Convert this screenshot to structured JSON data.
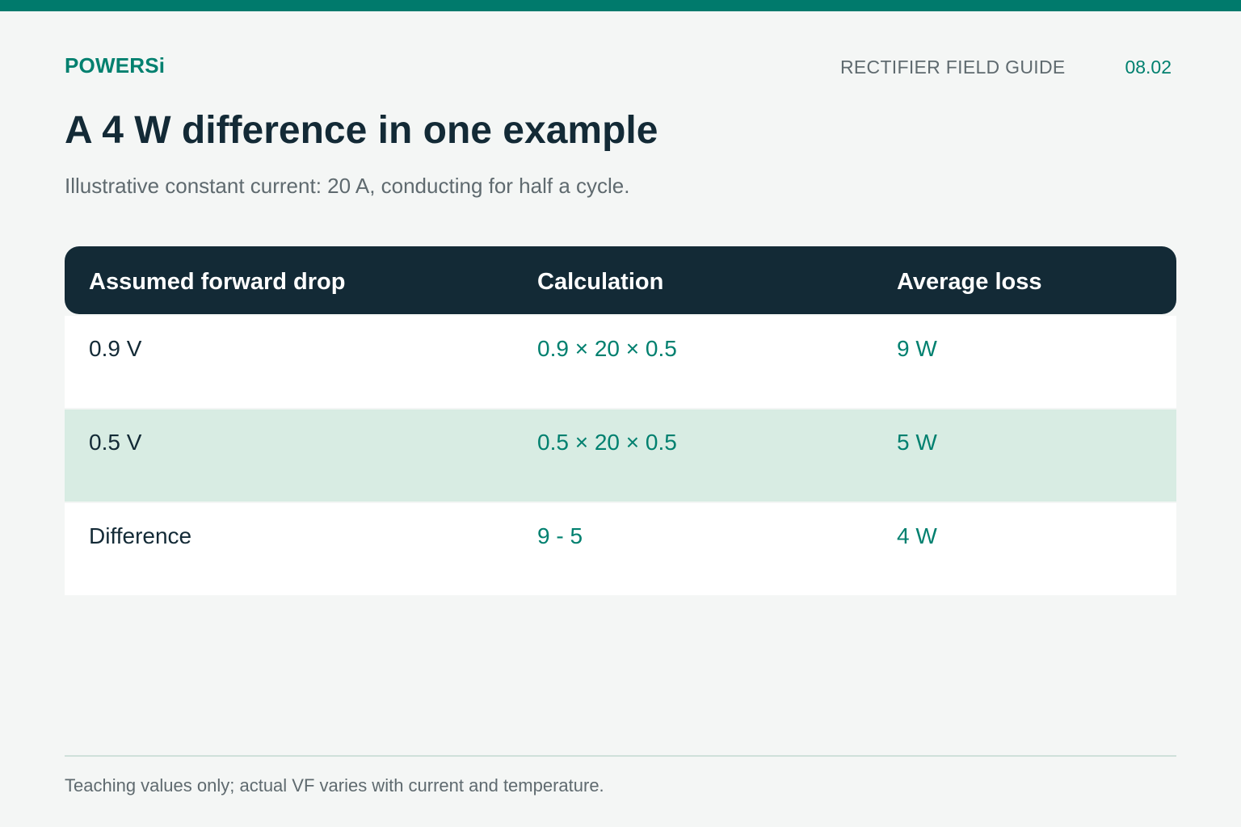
{
  "header": {
    "brand": "POWERSi",
    "guide_label": "RECTIFIER FIELD GUIDE",
    "page_number": "08.02"
  },
  "title": "A 4 W difference in one example",
  "subtitle": "Illustrative constant current: 20 A, conducting for half a cycle.",
  "table": {
    "columns": [
      "Assumed forward drop",
      "Calculation",
      "Average loss"
    ],
    "rows": [
      [
        "0.9 V",
        "0.9 × 20 × 0.5",
        "9 W"
      ],
      [
        "0.5 V",
        "0.5 × 20 × 0.5",
        "5 W"
      ],
      [
        "Difference",
        "9 - 5",
        "4 W"
      ]
    ]
  },
  "footnote": "Teaching values only; actual VF varies with current and temperature.",
  "colors": {
    "accent": "#007a6c",
    "header_bg": "#132a36",
    "highlight_row": "#d8ece3",
    "page_bg": "#f4f6f5"
  }
}
